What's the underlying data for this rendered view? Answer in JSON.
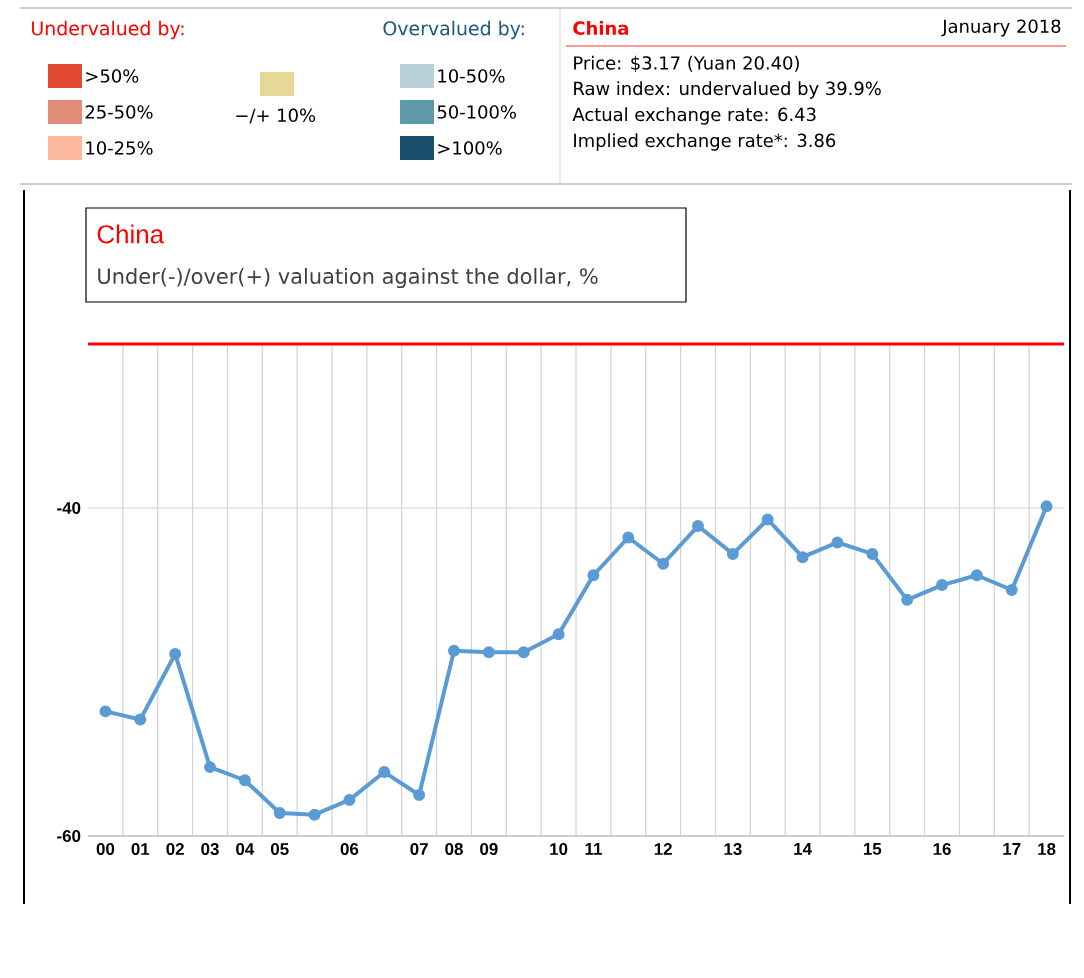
{
  "chart_data": {
    "type": "line",
    "title": "China",
    "subtitle": "Under(-)/over(+) valuation against the dollar, %",
    "categories": [
      "00",
      "01",
      "02",
      "03",
      "04",
      "05",
      null,
      "06",
      null,
      "07",
      "08",
      "09",
      null,
      "10",
      "11",
      null,
      "12",
      null,
      "13",
      null,
      "14",
      null,
      "15",
      null,
      "16",
      null,
      "17",
      "18"
    ],
    "series": [
      {
        "color": "#5b9bd5",
        "values": [
          -52.4,
          -52.9,
          -48.9,
          -55.8,
          -56.6,
          -58.6,
          -58.7,
          -57.8,
          -56.1,
          -57.5,
          -48.7,
          -48.8,
          -48.8,
          -47.7,
          -44.1,
          -41.8,
          -43.4,
          -41.1,
          -42.8,
          -40.7,
          -43.0,
          -42.1,
          -42.8,
          -45.6,
          -44.7,
          -44.1,
          -45.0,
          -39.9
        ]
      }
    ],
    "ylim": [
      -60,
      -30
    ],
    "yticks": [
      -60,
      -40
    ],
    "grid": true,
    "marker": "circle",
    "line_style": "solid",
    "ref_lines": [
      {
        "axis": "y",
        "value": -30,
        "color": "#ff0000"
      }
    ],
    "annotations": [
      "Undervalued by:",
      ">50%",
      "25-50%",
      "10-25%",
      "−/+ 10%",
      "Overvalued by:",
      "10-50%",
      "50-100%",
      ">100%",
      "China",
      "January 2018",
      "Price: $3.17 (Yuan 20.40)",
      "Raw index: undervalued by 39.9%",
      "Actual exchange rate: 6.43",
      "Implied exchange rate*: 3.86"
    ]
  }
}
